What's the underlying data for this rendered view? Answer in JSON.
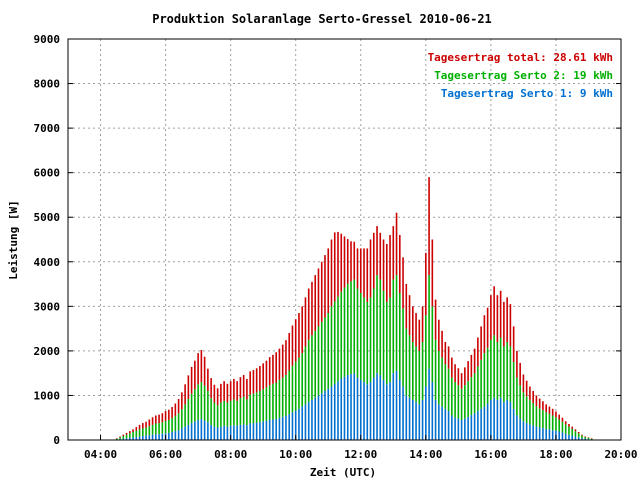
{
  "chart_data": {
    "type": "bar",
    "title": "Produktion Solaranlage Serto-Gressel 2010-06-21",
    "xlabel": "Zeit (UTC)",
    "ylabel": "Leistung [W]",
    "xlim": [
      3,
      20
    ],
    "ylim": [
      0,
      9000
    ],
    "x_ticks": [
      "04:00",
      "06:00",
      "08:00",
      "10:00",
      "12:00",
      "14:00",
      "16:00",
      "18:00",
      "20:00"
    ],
    "y_ticks": [
      "0",
      "1000",
      "2000",
      "3000",
      "4000",
      "5000",
      "6000",
      "7000",
      "8000",
      "9000"
    ],
    "grid": true,
    "stacked": true,
    "legend_position": "top-right",
    "legend": [
      {
        "label": "Tagesertrag total: 28.61 kWh",
        "color": "#cc0000"
      },
      {
        "label": "Tagesertrag Serto 2: 19 kWh",
        "color": "#00b000"
      },
      {
        "label": "Tagesertrag Serto 1: 9 kWh",
        "color": "#0070d0"
      }
    ],
    "x": [
      4.5,
      4.6,
      4.7,
      4.8,
      4.9,
      5.0,
      5.1,
      5.2,
      5.3,
      5.4,
      5.5,
      5.6,
      5.7,
      5.8,
      5.9,
      6.0,
      6.1,
      6.2,
      6.3,
      6.4,
      6.5,
      6.6,
      6.7,
      6.8,
      6.9,
      7.0,
      7.1,
      7.2,
      7.3,
      7.4,
      7.5,
      7.6,
      7.7,
      7.8,
      7.9,
      8.0,
      8.1,
      8.2,
      8.3,
      8.4,
      8.5,
      8.6,
      8.7,
      8.8,
      8.9,
      9.0,
      9.1,
      9.2,
      9.3,
      9.4,
      9.5,
      9.6,
      9.7,
      9.8,
      9.9,
      10.0,
      10.1,
      10.2,
      10.3,
      10.4,
      10.5,
      10.6,
      10.7,
      10.8,
      10.9,
      11.0,
      11.1,
      11.2,
      11.3,
      11.4,
      11.5,
      11.6,
      11.7,
      11.8,
      11.9,
      12.0,
      12.1,
      12.2,
      12.3,
      12.4,
      12.5,
      12.6,
      12.7,
      12.8,
      12.9,
      13.0,
      13.1,
      13.2,
      13.3,
      13.4,
      13.5,
      13.6,
      13.7,
      13.8,
      13.9,
      14.0,
      14.1,
      14.2,
      14.3,
      14.4,
      14.5,
      14.6,
      14.7,
      14.8,
      14.9,
      15.0,
      15.1,
      15.2,
      15.3,
      15.4,
      15.5,
      15.6,
      15.7,
      15.8,
      15.9,
      16.0,
      16.1,
      16.2,
      16.3,
      16.4,
      16.5,
      16.6,
      16.7,
      16.8,
      16.9,
      17.0,
      17.1,
      17.2,
      17.3,
      17.4,
      17.5,
      17.6,
      17.7,
      17.8,
      17.9,
      18.0,
      18.1,
      18.2,
      18.3,
      18.4,
      18.5,
      18.6,
      18.7,
      18.8,
      18.9,
      19.0,
      19.1
    ],
    "series": [
      {
        "name": "Tagesertrag Serto 1: 9 kWh",
        "color": "#0070d0",
        "values": [
          10,
          20,
          30,
          40,
          50,
          60,
          70,
          80,
          90,
          100,
          110,
          120,
          130,
          130,
          140,
          150,
          160,
          180,
          200,
          220,
          260,
          300,
          340,
          380,
          420,
          450,
          470,
          440,
          400,
          340,
          300,
          280,
          300,
          320,
          300,
          320,
          330,
          320,
          340,
          350,
          330,
          370,
          380,
          390,
          400,
          420,
          430,
          450,
          460,
          470,
          500,
          520,
          540,
          580,
          620,
          660,
          700,
          750,
          800,
          850,
          900,
          950,
          1000,
          1050,
          1100,
          1150,
          1200,
          1260,
          1320,
          1380,
          1420,
          1460,
          1480,
          1500,
          1400,
          1350,
          1300,
          1250,
          1300,
          1400,
          1500,
          1450,
          1350,
          1250,
          1300,
          1500,
          1550,
          1350,
          1200,
          1000,
          950,
          900,
          850,
          800,
          900,
          1200,
          1600,
          1300,
          900,
          800,
          750,
          700,
          650,
          550,
          500,
          480,
          450,
          480,
          520,
          560,
          600,
          650,
          700,
          750,
          820,
          900,
          950,
          900,
          950,
          850,
          900,
          850,
          700,
          550,
          480,
          420,
          380,
          350,
          330,
          300,
          280,
          270,
          250,
          240,
          220,
          210,
          190,
          170,
          140,
          120,
          100,
          80,
          60,
          40,
          30,
          20,
          10
        ]
      },
      {
        "name": "Tagesertrag Serto 2: 19 kWh",
        "color": "#00b000",
        "values": [
          20,
          40,
          60,
          80,
          100,
          120,
          140,
          160,
          170,
          180,
          200,
          220,
          240,
          250,
          260,
          280,
          290,
          310,
          340,
          380,
          430,
          500,
          580,
          660,
          720,
          800,
          830,
          780,
          700,
          600,
          540,
          500,
          540,
          560,
          540,
          560,
          580,
          560,
          600,
          620,
          580,
          650,
          660,
          680,
          700,
          720,
          750,
          780,
          800,
          820,
          850,
          880,
          920,
          980,
          1050,
          1100,
          1150,
          1200,
          1300,
          1400,
          1450,
          1500,
          1550,
          1600,
          1650,
          1700,
          1800,
          1850,
          1900,
          1950,
          2000,
          2050,
          2080,
          2100,
          2000,
          1950,
          1900,
          1850,
          1900,
          2000,
          2200,
          2150,
          2000,
          1850,
          1900,
          2100,
          2150,
          1950,
          1750,
          1500,
          1400,
          1300,
          1250,
          1200,
          1300,
          1600,
          2100,
          1700,
          1350,
          1200,
          1100,
          1000,
          950,
          850,
          800,
          750,
          700,
          750,
          800,
          850,
          900,
          1000,
          1100,
          1200,
          1250,
          1350,
          1400,
          1300,
          1350,
          1250,
          1300,
          1250,
          1050,
          850,
          750,
          650,
          600,
          550,
          500,
          460,
          430,
          400,
          370,
          350,
          330,
          300,
          270,
          240,
          210,
          180,
          150,
          120,
          90,
          60,
          40,
          30,
          20
        ]
      },
      {
        "name": "Tagesertrag total: 28.61 kWh",
        "color": "#cc0000",
        "values": [
          10,
          20,
          30,
          40,
          50,
          60,
          80,
          100,
          120,
          130,
          150,
          170,
          180,
          190,
          200,
          220,
          230,
          250,
          280,
          320,
          380,
          450,
          530,
          600,
          640,
          700,
          720,
          650,
          500,
          450,
          400,
          380,
          420,
          440,
          420,
          440,
          460,
          440,
          470,
          490,
          460,
          520,
          530,
          540,
          560,
          580,
          600,
          630,
          650,
          680,
          700,
          740,
          780,
          840,
          900,
          950,
          1000,
          1050,
          1100,
          1150,
          1200,
          1250,
          1300,
          1350,
          1400,
          1450,
          1500,
          1550,
          1450,
          1300,
          1150,
          1000,
          900,
          850,
          900,
          1000,
          1100,
          1200,
          1300,
          1250,
          1100,
          1050,
          1150,
          1300,
          1400,
          1200,
          1400,
          1300,
          1150,
          1000,
          900,
          800,
          750,
          700,
          800,
          1400,
          2200,
          1500,
          900,
          700,
          600,
          500,
          500,
          450,
          400,
          380,
          350,
          400,
          450,
          500,
          550,
          650,
          750,
          850,
          900,
          1000,
          1100,
          1050,
          1050,
          1000,
          1000,
          950,
          800,
          600,
          500,
          400,
          350,
          300,
          270,
          240,
          220,
          200,
          180,
          160,
          150,
          130,
          110,
          90,
          70,
          60,
          50,
          40,
          30,
          20,
          10,
          10,
          10
        ]
      }
    ]
  }
}
